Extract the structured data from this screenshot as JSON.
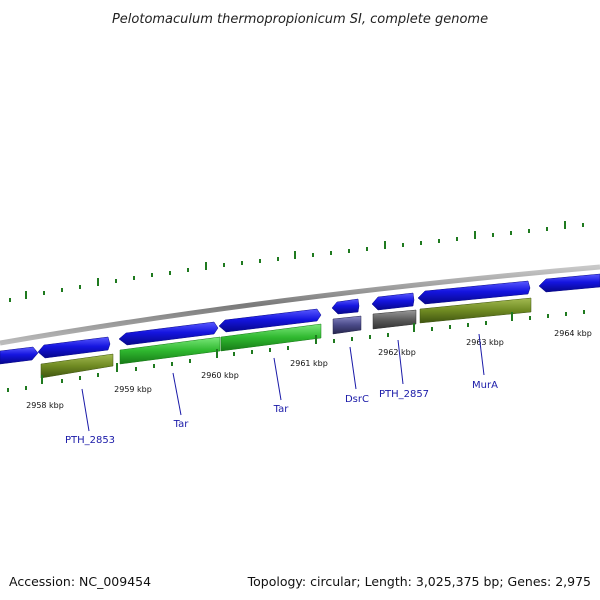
{
  "title": "Pelotomaculum thermopropionicum SI, complete genome",
  "footer": {
    "accession": "Accession: NC_009454",
    "summary": "Topology: circular; Length: 3,025,375 bp; Genes: 2,975"
  },
  "colors": {
    "backbone": "#8a8a8a",
    "forward_cds": "#1515e0",
    "reverse_cds": "#1515e0",
    "tick_marks": "#1f7a1f",
    "gene_label": "#1a1aa8",
    "olive_feature": "#6f8a22",
    "green_feature": "#2fb82f",
    "slate_feature": "#4a4a88",
    "gray_feature": "#5c5c5c"
  },
  "ruler": {
    "unit": "kbp",
    "tick_labels": [
      "2958 kbp",
      "2959 kbp",
      "2960 kbp",
      "2961 kbp",
      "2962 kbp",
      "2963 kbp",
      "2964 kbp"
    ]
  },
  "genes": [
    {
      "label": "PTH_2853",
      "color": "olive"
    },
    {
      "label": "Tar",
      "color": "green"
    },
    {
      "label": "Tar",
      "color": "green"
    },
    {
      "label": "DsrC",
      "color": "slate"
    },
    {
      "label": "PTH_2857",
      "color": "gray"
    },
    {
      "label": "MurA",
      "color": "olive"
    }
  ]
}
